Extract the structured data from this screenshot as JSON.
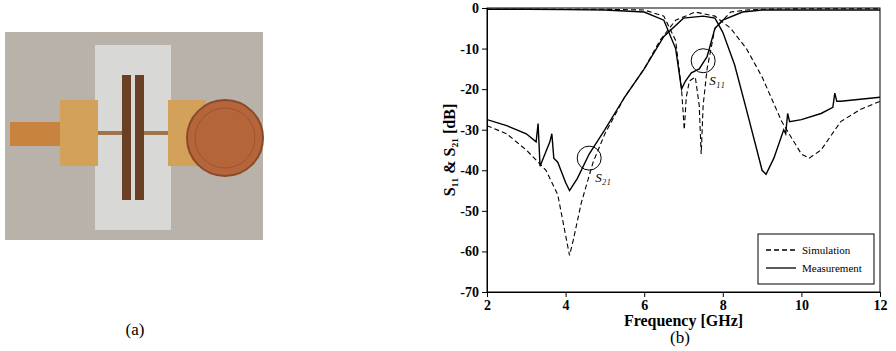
{
  "photo": {
    "label": "(a)"
  },
  "chart_data": {
    "type": "line",
    "panel_label": "(b)",
    "x_label": "Frequency [GHz]",
    "y_label": "S₁₁ & S₂₁ [dB]",
    "xlim": [
      2,
      12
    ],
    "xticks": [
      2,
      4,
      6,
      8,
      10,
      12
    ],
    "ylim": [
      -70,
      0
    ],
    "yticks": [
      -70,
      -60,
      -50,
      -40,
      -30,
      -20,
      -10,
      0
    ],
    "legend": "lower right",
    "grid": false,
    "series": [
      {
        "name": "Simulation",
        "color": "#000000",
        "line_style": "dashed",
        "x": [
          2,
          2.5,
          3,
          3.5,
          3.8,
          4,
          4.1,
          4.2,
          4.4,
          4.7,
          5,
          5.5,
          6,
          6.4,
          6.8,
          7.3,
          7.8,
          8.2,
          8.6,
          9,
          9.5,
          10,
          10.2,
          10.5,
          11,
          11.5,
          12
        ],
        "values": [
          -29,
          -31,
          -35,
          -40,
          -46,
          -56,
          -61,
          -57,
          -48,
          -38,
          -31,
          -22,
          -15,
          -8,
          -3,
          -1,
          -2,
          -5,
          -10,
          -17,
          -28,
          -36,
          -37,
          -35,
          -28,
          -25,
          -23
        ]
      },
      {
        "color": "#000000",
        "line_style": "dashed",
        "x": [
          2,
          3,
          4,
          5,
          6,
          6.5,
          6.8,
          6.95,
          7.02,
          7.07,
          7.15,
          7.3,
          7.4,
          7.45,
          7.5,
          7.6,
          7.8,
          8.2,
          8.6,
          9,
          10,
          11,
          12
        ],
        "values": [
          -0.3,
          -0.3,
          -0.3,
          -0.3,
          -0.5,
          -2,
          -8,
          -20,
          -30,
          -22,
          -18,
          -17,
          -24,
          -36,
          -24,
          -15,
          -5,
          -1,
          -0.5,
          -0.3,
          -0.2,
          -0.2,
          -0.2
        ]
      },
      {
        "name": "Measurement",
        "color": "#000000",
        "line_style": "solid",
        "x": [
          2,
          2.5,
          3,
          3.25,
          3.3,
          3.35,
          3.6,
          3.65,
          3.7,
          3.8,
          4,
          4.1,
          4.3,
          4.6,
          5,
          5.5,
          6,
          6.5,
          7,
          7.5,
          7.8,
          8,
          8.3,
          8.6,
          9,
          9.1,
          9.3,
          9.55,
          9.6,
          9.65,
          9.7,
          10,
          10.5,
          10.8,
          10.85,
          10.9,
          11,
          11.5,
          12
        ],
        "values": [
          -27.5,
          -29,
          -31,
          -33,
          -28.5,
          -39,
          -33,
          -31,
          -37,
          -38,
          -43,
          -45,
          -42,
          -36,
          -30,
          -22,
          -15,
          -7,
          -2.5,
          -2,
          -2.5,
          -6,
          -14,
          -25,
          -40,
          -41,
          -37,
          -30,
          -31,
          -26,
          -28,
          -27.5,
          -26,
          -24.5,
          -21,
          -23,
          -23,
          -22.5,
          -22
        ]
      },
      {
        "color": "#000000",
        "line_style": "solid",
        "x": [
          2,
          3,
          4,
          5,
          6,
          6.5,
          6.8,
          6.95,
          7.05,
          7.2,
          7.4,
          7.6,
          7.8,
          8,
          8.5,
          9,
          10,
          11,
          12
        ],
        "values": [
          -0.3,
          -0.3,
          -0.4,
          -0.5,
          -1,
          -3,
          -10,
          -20,
          -18,
          -16,
          -15,
          -12,
          -5,
          -3,
          -1,
          -0.5,
          -0.5,
          -0.5,
          -0.5
        ]
      }
    ],
    "annotations": [
      {
        "text": "S₁₁",
        "x": 7.5,
        "y": -13
      },
      {
        "text": "S₂₁",
        "x": 4.6,
        "y": -37
      }
    ]
  }
}
